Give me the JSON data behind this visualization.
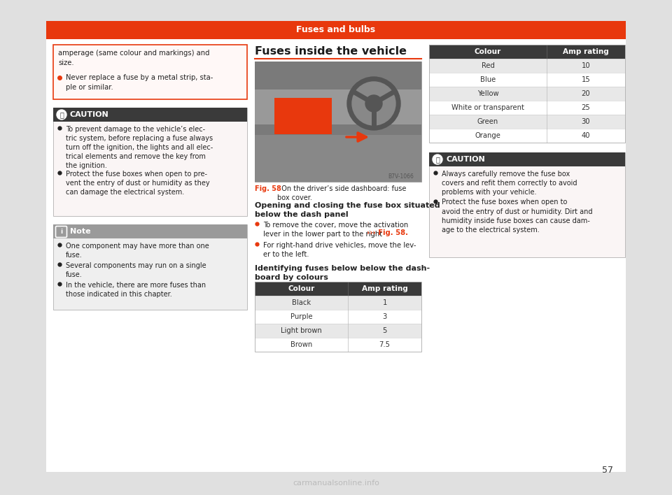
{
  "page_bg": "#e0e0e0",
  "content_bg": "#ffffff",
  "header_color": "#e8380d",
  "header_text": "Fuses and bulbs",
  "header_text_color": "#ffffff",
  "dark_header_color": "#3a3a3a",
  "caution_bg": "#faf5f5",
  "note_header_color": "#9a9a9a",
  "note_bg": "#efefef",
  "orange_border_color": "#e8380d",
  "page_number": "57",
  "watermark": "carmanualsonline.info",
  "top_box_text1": "amperage (same colour and markings) and\nsize.",
  "top_box_bullet": "Never replace a fuse by a metal strip, sta-\nple or similar.",
  "caution1_title": "CAUTION",
  "caution1_bullets": [
    "To prevent damage to the vehicle’s elec-\ntric system, before replacing a fuse always\nturn off the ignition, the lights and all elec-\ntrical elements and remove the key from\nthe ignition.",
    "Protect the fuse boxes when open to pre-\nvent the entry of dust or humidity as they\ncan damage the electrical system."
  ],
  "note_title": "Note",
  "note_bullets": [
    "One component may have more than one\nfuse.",
    "Several components may run on a single\nfuse.",
    "In the vehicle, there are more fuses than\nthose indicated in this chapter."
  ],
  "section_title": "Fuses inside the vehicle",
  "fig_caption_bold": "Fig. 58",
  "fig_caption_rest": "  On the driver’s side dashboard: fuse\nbox cover.",
  "opening_title": "Opening and closing the fuse box situated\nbelow the dash panel",
  "opening_bullet1_plain": "To remove the cover, move the activation\nlever in the lower part to the right ",
  "opening_bullet1_bold": "››› Fig. 58.",
  "opening_bullet2": "For right-hand drive vehicles, move the lev-\ner to the left.",
  "ident_title": "Identifying fuses below below the dash-\nboard by colours",
  "table1_headers": [
    "Colour",
    "Amp rating"
  ],
  "table1_rows": [
    [
      "Black",
      "1"
    ],
    [
      "Purple",
      "3"
    ],
    [
      "Light brown",
      "5"
    ],
    [
      "Brown",
      "7.5"
    ]
  ],
  "table1_header_bg": "#3a3a3a",
  "table1_header_text": "#ffffff",
  "table1_row_bg_odd": "#e8e8e8",
  "table1_row_bg_even": "#ffffff",
  "table2_headers": [
    "Colour",
    "Amp rating"
  ],
  "table2_rows": [
    [
      "Red",
      "10"
    ],
    [
      "Blue",
      "15"
    ],
    [
      "Yellow",
      "20"
    ],
    [
      "White or transparent",
      "25"
    ],
    [
      "Green",
      "30"
    ],
    [
      "Orange",
      "40"
    ]
  ],
  "table2_header_bg": "#3a3a3a",
  "table2_header_text": "#ffffff",
  "table2_row_bg_odd": "#e8e8e8",
  "table2_row_bg_even": "#ffffff",
  "caution2_title": "CAUTION",
  "caution2_bullets": [
    "Always carefully remove the fuse box\ncovers and refit them correctly to avoid\nproblems with your vehicle.",
    "Protect the fuse boxes when open to\navoid the entry of dust or humidity. Dirt and\nhumidity inside fuse boxes can cause dam-\nage to the electrical system."
  ]
}
